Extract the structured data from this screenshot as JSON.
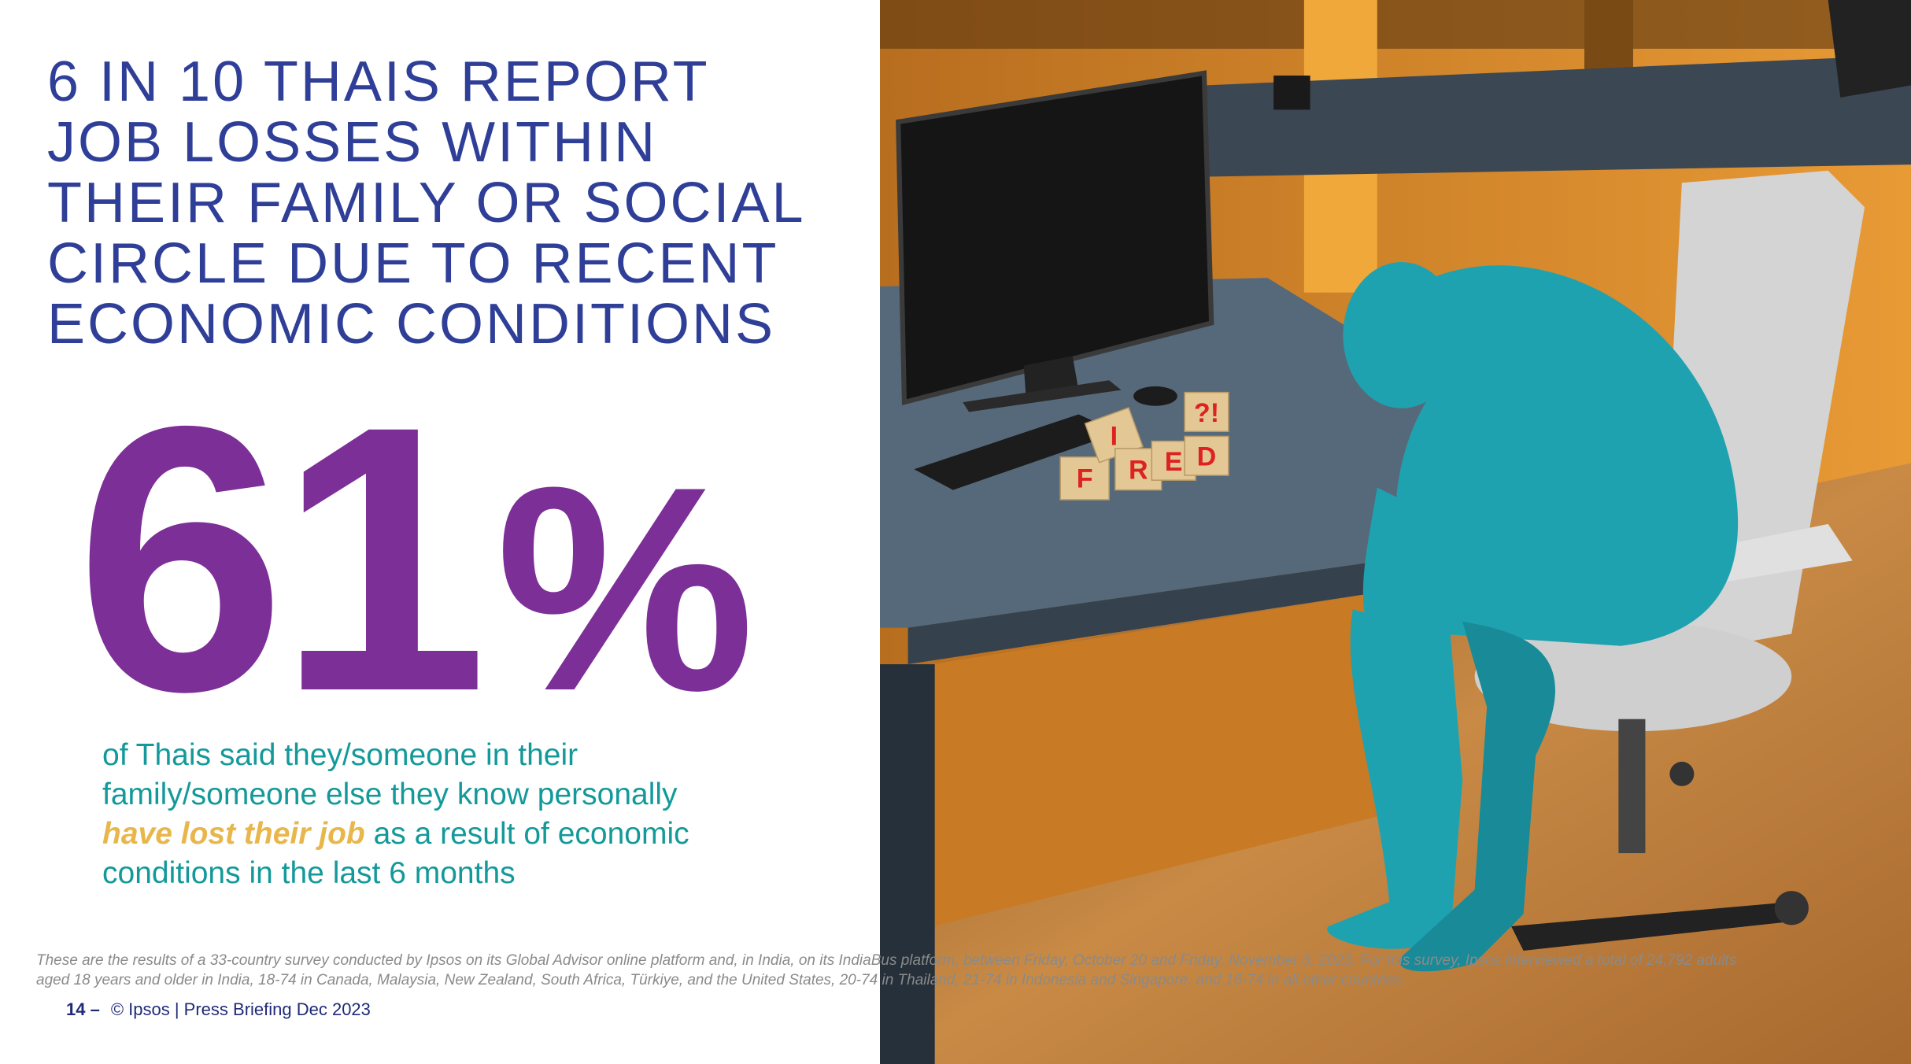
{
  "title": [
    "6 IN 10 THAIS REPORT",
    "JOB LOSSES WITHIN",
    "THEIR FAMILY OR SOCIAL",
    "CIRCLE DUE TO RECENT",
    "ECONOMIC CONDITIONS"
  ],
  "stat": {
    "number": "61",
    "unit": "%"
  },
  "description": {
    "before": "of Thais said they/someone in their family/someone else they know personally",
    "highlight": "have lost their job",
    "after": "as a result of economic conditions in the last 6 months"
  },
  "footnote": "These are the results of a 33-country survey conducted by Ipsos on its Global Advisor online platform and, in India, on its IndiaBus platform, between Friday, October 20 and Friday, November 3, 2023. For this survey, Ipsos interviewed a total of 24,792 adults aged 18 years and older in India, 18-74 in Canada, Malaysia, New Zealand, South Africa, Türkiye, and the United States, 20-74 in Thailand, 21-74 in Indonesia and Singapore, and 16-74 in all other countries.",
  "footer": {
    "page": "14 –",
    "text": "© Ipsos | Press Briefing Dec 2023"
  },
  "image": {
    "blocks": [
      "F",
      "I",
      "R",
      "E",
      "D",
      "?!"
    ]
  }
}
